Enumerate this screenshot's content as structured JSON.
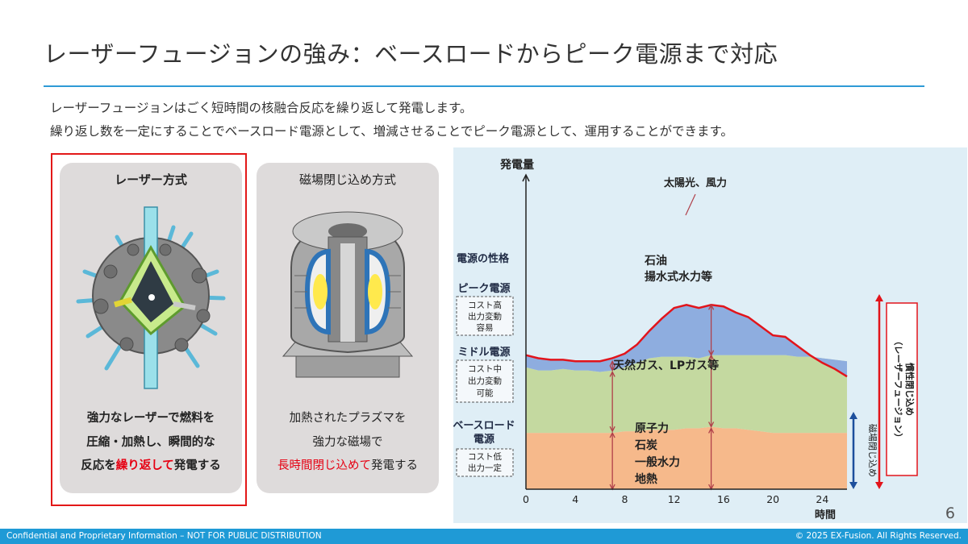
{
  "title": "レーザーフュージョンの強み：ベースロードからピーク電源まで対応",
  "lead": {
    "line1": "レーザーフュージョンはごく短時間の核融合反応を繰り返して発電します。",
    "line2": "繰り返し数を一定にすることでベースロード電源として、増減させることでピーク電源として、運用することができます。"
  },
  "cards": {
    "laser": {
      "heading": "レーザー方式",
      "desc_line1": "強力なレーザーで燃料を",
      "desc_line2": "圧縮・加熱し、瞬間的な",
      "desc_line3_pre": "反応を",
      "desc_line3_hl": "繰り返して",
      "desc_line3_post": "発電する"
    },
    "magnetic": {
      "heading": "磁場閉じ込め方式",
      "desc_line1": "加熱されたプラズマを",
      "desc_line2": "強力な磁場で",
      "desc_line3_hl": "長時間閉じ込めて",
      "desc_line3_post": "発電する"
    }
  },
  "chart_data": {
    "type": "area",
    "title": "",
    "ylabel": "発電量",
    "xlabel": "時間",
    "x": [
      0,
      1,
      2,
      3,
      4,
      5,
      6,
      7,
      8,
      9,
      10,
      11,
      12,
      13,
      14,
      15,
      16,
      17,
      18,
      19,
      20,
      21,
      22,
      23,
      24,
      25,
      26
    ],
    "x_ticks": [
      0,
      4,
      8,
      12,
      16,
      20,
      24
    ],
    "xlim": [
      0,
      26
    ],
    "ylim": [
      0,
      100
    ],
    "stack_top": {
      "base": [
        37,
        37,
        37,
        37,
        37,
        37,
        37,
        37,
        38,
        38,
        39,
        39,
        39,
        40,
        40,
        41,
        40,
        40,
        39,
        38,
        37,
        37,
        37,
        37,
        37,
        37,
        37
      ],
      "middle": [
        80,
        78,
        78,
        79,
        78,
        78,
        77,
        78,
        80,
        83,
        86,
        87,
        87,
        87,
        86,
        88,
        88,
        88,
        88,
        88,
        88,
        88,
        87,
        87,
        86,
        85,
        84
      ],
      "peak": [
        88,
        86,
        85,
        85,
        84,
        84,
        84,
        86,
        89,
        95,
        104,
        112,
        119,
        121,
        119,
        121,
        120,
        116,
        113,
        107,
        101,
        100,
        94,
        88,
        83,
        79,
        74
      ]
    },
    "series": [
      {
        "name": "原子力\n石炭\n一般水力\n地熱",
        "lines": [
          "原子力",
          "石炭",
          "一般水力",
          "地熱"
        ],
        "color": "#f6b98b"
      },
      {
        "name": "天然ガス、LPガス等",
        "color": "#c4d9a0"
      },
      {
        "name": "石油\n揚水式水力等",
        "lines": [
          "石油",
          "揚水式水力等"
        ],
        "color": "#8eaddf"
      }
    ],
    "demand_color": "#e2141b",
    "annotation_top": "太陽光、風力",
    "nature_header": "電源の性格",
    "categories": [
      {
        "name": "ピーク電源",
        "lines": [
          "コスト高",
          "出力変動",
          "容易"
        ]
      },
      {
        "name": "ミドル電源",
        "lines": [
          "コスト中",
          "出力変動",
          "可能"
        ]
      },
      {
        "name": "ベースロード\n電源",
        "name_lines": [
          "ベースロード",
          "電源"
        ],
        "lines": [
          "コスト低",
          "出力一定"
        ]
      }
    ],
    "right_bars": {
      "inertial": {
        "label_lines": [
          "慣性閉じ込め",
          "（レーザーフュージョン）"
        ],
        "color": "#e2141b"
      },
      "magnetic": {
        "label": "磁場閉じ込め",
        "color": "#1d4f9c"
      }
    }
  },
  "page_number": "6",
  "footer": {
    "left": "Confidential and Proprietary Information – NOT FOR PUBLIC DISTRIBUTION",
    "right": "© 2025 EX-Fusion. All Rights Reserved."
  }
}
